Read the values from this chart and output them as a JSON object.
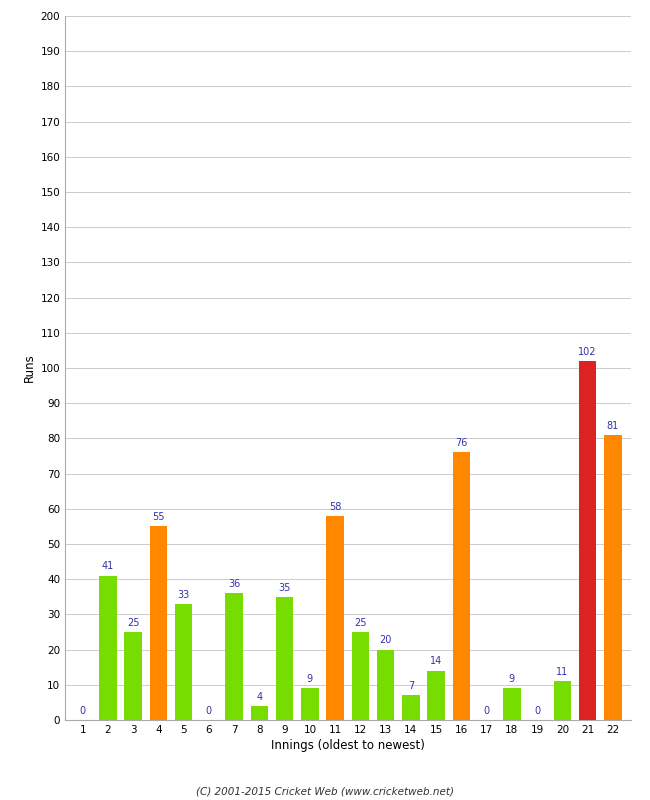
{
  "innings": [
    1,
    2,
    3,
    4,
    5,
    6,
    7,
    8,
    9,
    10,
    11,
    12,
    13,
    14,
    15,
    16,
    17,
    18,
    19,
    20,
    21,
    22
  ],
  "values": [
    0,
    41,
    25,
    55,
    33,
    0,
    36,
    4,
    35,
    9,
    58,
    25,
    20,
    7,
    14,
    76,
    0,
    9,
    0,
    11,
    102,
    81
  ],
  "colors": [
    "#77dd00",
    "#77dd00",
    "#77dd00",
    "#ff8800",
    "#77dd00",
    "#77dd00",
    "#77dd00",
    "#77dd00",
    "#77dd00",
    "#77dd00",
    "#ff8800",
    "#77dd00",
    "#77dd00",
    "#77dd00",
    "#77dd00",
    "#ff8800",
    "#77dd00",
    "#77dd00",
    "#77dd00",
    "#77dd00",
    "#dd2222",
    "#ff8800"
  ],
  "ylabel": "Runs",
  "xlabel": "Innings (oldest to newest)",
  "ylim": [
    0,
    200
  ],
  "yticks": [
    0,
    10,
    20,
    30,
    40,
    50,
    60,
    70,
    80,
    90,
    100,
    110,
    120,
    130,
    140,
    150,
    160,
    170,
    180,
    190,
    200
  ],
  "label_color": "#3333aa",
  "background_color": "#ffffff",
  "grid_color": "#cccccc",
  "footer": "(C) 2001-2015 Cricket Web (www.cricketweb.net)"
}
